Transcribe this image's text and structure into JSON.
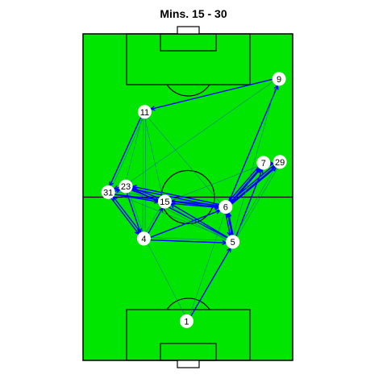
{
  "chart_data": {
    "type": "network",
    "title": "Mins. 15 - 30",
    "pitch_color": "#00e600",
    "line_color": "#000000",
    "pass_color": "#0000ff",
    "thin_pass_color": "#008080",
    "node_fill": "#ffffff",
    "players": [
      {
        "id": "1",
        "x": 0.494,
        "y": 0.88
      },
      {
        "id": "4",
        "x": 0.29,
        "y": 0.627
      },
      {
        "id": "5",
        "x": 0.714,
        "y": 0.637
      },
      {
        "id": "6",
        "x": 0.68,
        "y": 0.53
      },
      {
        "id": "7",
        "x": 0.861,
        "y": 0.395
      },
      {
        "id": "29",
        "x": 0.939,
        "y": 0.392
      },
      {
        "id": "9",
        "x": 0.935,
        "y": 0.138
      },
      {
        "id": "11",
        "x": 0.294,
        "y": 0.239
      },
      {
        "id": "23",
        "x": 0.204,
        "y": 0.467
      },
      {
        "id": "31",
        "x": 0.12,
        "y": 0.485
      },
      {
        "id": "15",
        "x": 0.39,
        "y": 0.514
      }
    ],
    "passes": [
      {
        "from": "1",
        "to": "5",
        "weight": 2
      },
      {
        "from": "1",
        "to": "4",
        "weight": 1
      },
      {
        "from": "1",
        "to": "6",
        "weight": 1
      },
      {
        "from": "4",
        "to": "5",
        "weight": 2
      },
      {
        "from": "4",
        "to": "31",
        "weight": 2
      },
      {
        "from": "4",
        "to": "23",
        "weight": 1
      },
      {
        "from": "4",
        "to": "15",
        "weight": 2
      },
      {
        "from": "4",
        "to": "6",
        "weight": 2
      },
      {
        "from": "4",
        "to": "11",
        "weight": 1
      },
      {
        "from": "5",
        "to": "6",
        "weight": 3
      },
      {
        "from": "5",
        "to": "7",
        "weight": 2
      },
      {
        "from": "5",
        "to": "29",
        "weight": 1
      },
      {
        "from": "5",
        "to": "15",
        "weight": 2
      },
      {
        "from": "5",
        "to": "23",
        "weight": 2
      },
      {
        "from": "5",
        "to": "31",
        "weight": 1
      },
      {
        "from": "5",
        "to": "4",
        "weight": 1
      },
      {
        "from": "6",
        "to": "7",
        "weight": 3
      },
      {
        "from": "6",
        "to": "29",
        "weight": 3
      },
      {
        "from": "6",
        "to": "9",
        "weight": 2
      },
      {
        "from": "6",
        "to": "15",
        "weight": 2
      },
      {
        "from": "6",
        "to": "23",
        "weight": 2
      },
      {
        "from": "6",
        "to": "31",
        "weight": 1
      },
      {
        "from": "6",
        "to": "5",
        "weight": 2
      },
      {
        "from": "7",
        "to": "29",
        "weight": 2
      },
      {
        "from": "7",
        "to": "6",
        "weight": 2
      },
      {
        "from": "29",
        "to": "6",
        "weight": 2
      },
      {
        "from": "29",
        "to": "5",
        "weight": 1
      },
      {
        "from": "9",
        "to": "11",
        "weight": 2
      },
      {
        "from": "9",
        "to": "23",
        "weight": 1
      },
      {
        "from": "9",
        "to": "5",
        "weight": 1
      },
      {
        "from": "11",
        "to": "31",
        "weight": 2
      },
      {
        "from": "11",
        "to": "23",
        "weight": 1
      },
      {
        "from": "11",
        "to": "4",
        "weight": 1
      },
      {
        "from": "11",
        "to": "15",
        "weight": 1
      },
      {
        "from": "11",
        "to": "6",
        "weight": 1
      },
      {
        "from": "23",
        "to": "31",
        "weight": 2
      },
      {
        "from": "23",
        "to": "15",
        "weight": 2
      },
      {
        "from": "23",
        "to": "6",
        "weight": 2
      },
      {
        "from": "23",
        "to": "5",
        "weight": 1
      },
      {
        "from": "23",
        "to": "4",
        "weight": 2
      },
      {
        "from": "31",
        "to": "23",
        "weight": 2
      },
      {
        "from": "31",
        "to": "6",
        "weight": 2
      },
      {
        "from": "31",
        "to": "15",
        "weight": 2
      },
      {
        "from": "31",
        "to": "4",
        "weight": 2
      },
      {
        "from": "31",
        "to": "11",
        "weight": 1
      },
      {
        "from": "15",
        "to": "6",
        "weight": 2
      },
      {
        "from": "15",
        "to": "5",
        "weight": 1
      },
      {
        "from": "15",
        "to": "23",
        "weight": 2
      },
      {
        "from": "15",
        "to": "7",
        "weight": 1
      },
      {
        "from": "15",
        "to": "4",
        "weight": 1
      }
    ]
  }
}
